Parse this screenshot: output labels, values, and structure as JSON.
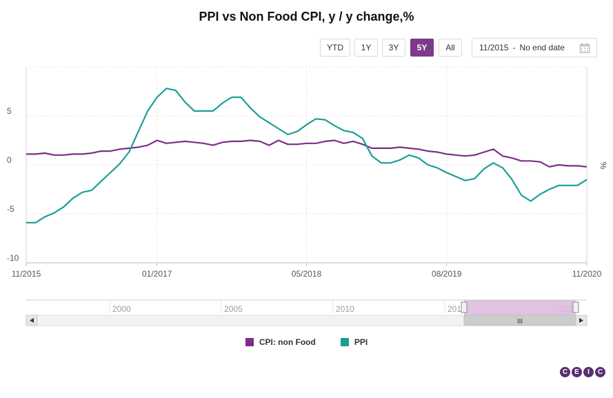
{
  "title": "PPI vs Non Food CPI, y / y change,%",
  "range_buttons": [
    {
      "label": "YTD",
      "active": false
    },
    {
      "label": "1Y",
      "active": false
    },
    {
      "label": "3Y",
      "active": false
    },
    {
      "label": "5Y",
      "active": true
    },
    {
      "label": "All",
      "active": false
    }
  ],
  "date_range": {
    "from": "11/2015",
    "separator": "-",
    "to": "No end date"
  },
  "navigator": {
    "years": [
      "2000",
      "2005",
      "2010",
      "201",
      "202"
    ],
    "grip": "III"
  },
  "colors": {
    "cpi": "#7b2f86",
    "ppi": "#1a9e98",
    "selection": "#d9b8da",
    "active_button": "#7b3a8a"
  },
  "chart_data": {
    "type": "line",
    "title": "PPI vs Non Food CPI, y / y change,%",
    "ylabel": "%",
    "ylim": [
      -10,
      10
    ],
    "yticks": [
      -10,
      -5,
      0,
      5
    ],
    "xticks": [
      {
        "t": 0,
        "label": "11/2015"
      },
      {
        "t": 14,
        "label": "01/2017"
      },
      {
        "t": 30,
        "label": "05/2018"
      },
      {
        "t": 45,
        "label": "08/2019"
      },
      {
        "t": 60,
        "label": "11/2020"
      }
    ],
    "x_start": "11/2015",
    "x_end": "11/2020",
    "legend_position": "bottom",
    "series": [
      {
        "name": "CPI: non Food",
        "color": "#7b2f86",
        "values": [
          1.1,
          1.1,
          1.2,
          1.0,
          1.0,
          1.1,
          1.1,
          1.2,
          1.4,
          1.4,
          1.6,
          1.7,
          1.8,
          2.0,
          2.5,
          2.2,
          2.3,
          2.4,
          2.3,
          2.2,
          2.0,
          2.3,
          2.4,
          2.4,
          2.5,
          2.4,
          2.0,
          2.5,
          2.1,
          2.1,
          2.2,
          2.2,
          2.4,
          2.5,
          2.2,
          2.4,
          2.1,
          1.7,
          1.7,
          1.7,
          1.8,
          1.7,
          1.6,
          1.4,
          1.3,
          1.1,
          1.0,
          0.9,
          1.0,
          1.3,
          1.6,
          0.9,
          0.7,
          0.4,
          0.4,
          0.3,
          -0.2,
          0.0,
          -0.1,
          -0.1,
          -0.2
        ]
      },
      {
        "name": "PPI",
        "color": "#1a9e98",
        "values": [
          -5.9,
          -5.9,
          -5.3,
          -4.9,
          -4.3,
          -3.4,
          -2.8,
          -2.6,
          -1.7,
          -0.8,
          0.1,
          1.3,
          3.4,
          5.5,
          6.9,
          7.8,
          7.6,
          6.4,
          5.5,
          5.5,
          5.5,
          6.3,
          6.9,
          6.9,
          5.8,
          4.9,
          4.3,
          3.7,
          3.1,
          3.4,
          4.1,
          4.7,
          4.6,
          4.0,
          3.5,
          3.3,
          2.7,
          0.9,
          0.2,
          0.2,
          0.5,
          1.0,
          0.7,
          0.0,
          -0.3,
          -0.8,
          -1.2,
          -1.6,
          -1.4,
          -0.4,
          0.2,
          -0.3,
          -1.5,
          -3.1,
          -3.7,
          -3.0,
          -2.5,
          -2.1,
          -2.1,
          -2.1,
          -1.5
        ]
      }
    ]
  }
}
